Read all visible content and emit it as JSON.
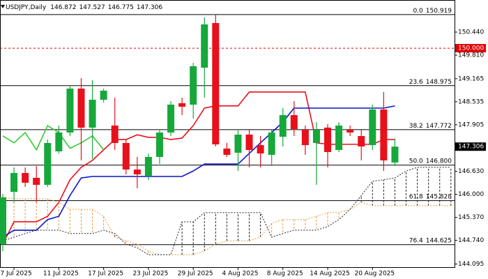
{
  "chart_data": {
    "type": "candlestick",
    "title": "USDJPY,Daily",
    "categories": [
      null,
      "7 Jul 2025",
      null,
      null,
      null,
      "11 Jul 2025",
      null,
      null,
      null,
      "17 Jul 2025",
      null,
      null,
      null,
      "23 Jul 2025",
      null,
      null,
      null,
      "29 Jul 2025",
      null,
      null,
      null,
      "4 Aug 2025",
      null,
      null,
      null,
      "8 Aug 2025",
      null,
      null,
      null,
      "14 Aug 2025",
      null,
      null,
      null,
      "20 Aug 2025",
      null,
      null,
      null,
      null,
      null,
      null,
      null
    ],
    "open": [
      144.639,
      146.07,
      146.585,
      146.452,
      146.261,
      147.177,
      147.692,
      148.894,
      147.826,
      148.589,
      147.883,
      147.406,
      146.68,
      146.509,
      147.024,
      147.692,
      148.494,
      148.455,
      149.467,
      150.688,
      147.253,
      147.139,
      147.635,
      147.348,
      147.081,
      147.577,
      148.169,
      147.768,
      147.406,
      147.826,
      147.215,
      147.768,
      147.596,
      147.348,
      148.322,
      146.872,
      null,
      null,
      null,
      null,
      null
    ],
    "high": [
      146.013,
      146.738,
      146.738,
      146.776,
      147.501,
      147.883,
      148.99,
      149.18,
      149.123,
      148.894,
      148.646,
      147.501,
      147.024,
      147.119,
      147.787,
      148.551,
      148.646,
      149.6,
      150.841,
      150.919,
      147.406,
      147.787,
      147.787,
      147.596,
      147.787,
      148.36,
      148.551,
      147.883,
      147.978,
      147.921,
      147.978,
      147.883,
      147.787,
      148.455,
      148.799,
      147.527,
      null,
      null,
      null,
      null,
      null
    ],
    "low": [
      144.448,
      145.784,
      146.203,
      145.784,
      146.203,
      147.119,
      147.596,
      146.929,
      146.967,
      148.513,
      147.215,
      146.547,
      146.165,
      146.394,
      146.833,
      147.596,
      148.169,
      148.074,
      148.646,
      147.31,
      147.024,
      146.642,
      146.738,
      146.738,
      146.776,
      147.31,
      147.596,
      147.081,
      146.261,
      146.738,
      147.158,
      147.596,
      146.929,
      147.215,
      146.642,
      146.775,
      null,
      null,
      null,
      null,
      null
    ],
    "close": [
      145.917,
      146.585,
      146.318,
      146.261,
      147.406,
      147.692,
      148.894,
      147.826,
      148.589,
      148.837,
      147.406,
      146.68,
      146.547,
      147.024,
      147.692,
      148.455,
      148.398,
      149.505,
      150.65,
      147.368,
      147.081,
      147.635,
      147.215,
      147.119,
      147.692,
      148.169,
      147.787,
      147.348,
      147.768,
      147.158,
      147.883,
      147.692,
      147.31,
      148.322,
      146.929,
      147.306,
      null,
      null,
      null,
      null,
      null
    ],
    "up_color": "#16a83a",
    "down_color": "#e8101a",
    "series": [
      {
        "color": "#e8101a",
        "values": [
          144.64,
          145.25,
          145.25,
          145.25,
          145.4,
          145.78,
          146.4,
          146.74,
          146.93,
          147.22,
          147.5,
          147.5,
          147.63,
          147.56,
          147.56,
          147.5,
          147.54,
          147.88,
          148.36,
          148.42,
          148.42,
          148.42,
          148.8,
          148.8,
          148.8,
          148.8,
          148.8,
          148.8,
          147.41,
          147.37,
          147.37,
          147.37,
          147.37,
          147.37,
          147.5,
          147.5,
          null,
          null,
          null,
          null,
          null
        ]
      },
      {
        "color": "#0a14c8",
        "values": [
          144.83,
          145.02,
          145.02,
          145.02,
          145.31,
          145.4,
          145.97,
          146.45,
          146.49,
          146.49,
          146.49,
          146.49,
          146.49,
          146.49,
          146.49,
          146.49,
          146.49,
          146.64,
          146.83,
          146.83,
          146.83,
          146.83,
          147.12,
          147.41,
          147.69,
          147.98,
          148.36,
          148.36,
          148.36,
          148.36,
          148.36,
          148.36,
          148.36,
          148.36,
          148.36,
          148.42,
          null,
          null,
          null,
          null,
          null
        ]
      },
      {
        "color": "#33cc33",
        "values": [
          147.6,
          147.41,
          147.69,
          147.22,
          147.88,
          147.69,
          147.26,
          147.41,
          147.6,
          147.22,
          null,
          null,
          null,
          null,
          null,
          null,
          null,
          null,
          null,
          null,
          null,
          null,
          null,
          null,
          null,
          null,
          null,
          null,
          null,
          null,
          null,
          null,
          null,
          null,
          null,
          null,
          null,
          null,
          null,
          null,
          null
        ]
      },
      {
        "color": "#e89a3c",
        "style": "dashed",
        "values": [
          145.92,
          145.88,
          145.88,
          145.88,
          145.88,
          145.78,
          145.59,
          145.59,
          145.59,
          145.4,
          144.83,
          144.73,
          144.64,
          144.45,
          144.35,
          144.35,
          144.35,
          144.35,
          144.45,
          144.64,
          144.73,
          144.73,
          144.73,
          144.83,
          145.21,
          145.31,
          145.31,
          145.31,
          145.4,
          145.5,
          145.5,
          145.59,
          145.78,
          145.69,
          145.69,
          145.69,
          145.69,
          145.69,
          145.69,
          145.69,
          145.69
        ]
      },
      {
        "color": "#222222",
        "style": "dashed",
        "values": [
          144.73,
          144.83,
          144.93,
          145.02,
          145.02,
          145.02,
          144.93,
          144.93,
          144.93,
          145.02,
          144.93,
          144.64,
          144.54,
          144.35,
          144.35,
          144.35,
          145.25,
          145.25,
          145.5,
          145.5,
          145.5,
          145.5,
          145.5,
          145.5,
          144.83,
          144.93,
          145.02,
          145.02,
          145.02,
          145.12,
          145.31,
          145.59,
          145.97,
          146.36,
          146.4,
          146.45,
          146.64,
          146.74,
          146.74,
          146.74,
          146.74
        ]
      }
    ],
    "fibonacci": [
      {
        "ratio": "0.0",
        "level": 150.919
      },
      {
        "ratio": "23.6",
        "level": 148.975
      },
      {
        "ratio": "38.2",
        "level": 147.772
      },
      {
        "ratio": "50.0",
        "level": {
          "value": 146.8,
          "label": "146.800"
        }
      },
      {
        "ratio": "61.8",
        "level": 145.828
      },
      {
        "ratio": "76.4",
        "level": 144.625
      }
    ],
    "hlines": [
      {
        "value": 150,
        "label": "150.000",
        "color": "#e00000"
      }
    ],
    "ylim": [
      144.009,
      151.318
    ],
    "yticks": [
      {
        "value": 150.44,
        "label": "150.440"
      },
      {
        "value": 149.81,
        "label": "149.810"
      },
      {
        "value": 149.165,
        "label": "149.165"
      },
      {
        "value": 148.535,
        "label": "148.535"
      },
      {
        "value": 147.905,
        "label": "147.905"
      },
      {
        "value": 146.63,
        "label": "146.630"
      },
      {
        "value": 146.0,
        "label": "146.000"
      },
      {
        "value": 145.37,
        "label": "145.370"
      },
      {
        "value": 144.74,
        "label": "144.740"
      },
      {
        "value": 144.095,
        "label": "144.095"
      }
    ]
  }
}
